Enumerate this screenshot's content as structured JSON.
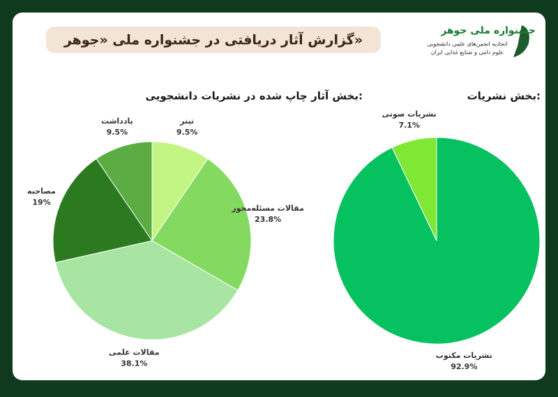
{
  "header": {
    "title": "گزارش آثار دریافتی در جشنواره ملی «جوهر»",
    "logo_title": "جشنواره ملی جوهر",
    "logo_line1": "اتحادیه انجمن‌های علمی دانشجویی",
    "logo_line2": "علوم دامی و صنایع غذایی ایران"
  },
  "chart_data": [
    {
      "type": "pie",
      "title": "بخش نشریات:",
      "categories": [
        "نشریات مکتوب",
        "نشریات صوتی"
      ],
      "values": [
        92.9,
        7.1
      ],
      "value_labels": [
        "92.9%",
        "7.1%"
      ],
      "colors": [
        "#06c160",
        "#7ee835"
      ]
    },
    {
      "type": "pie",
      "title": "بخش آثار چاپ شده در نشریات دانشجویی:",
      "categories": [
        "تیتر",
        "مقالات مسئله‌محور",
        "مقالات علمی",
        "مصاحبه",
        "یادداشت"
      ],
      "values": [
        9.5,
        23.8,
        38.1,
        19,
        9.5
      ],
      "value_labels": [
        "9.5%",
        "23.8%",
        "38.1%",
        "19%",
        "9.5%"
      ],
      "colors": [
        "#c3f585",
        "#84d960",
        "#a9e5a2",
        "#2b7a20",
        "#5aac43"
      ]
    }
  ]
}
